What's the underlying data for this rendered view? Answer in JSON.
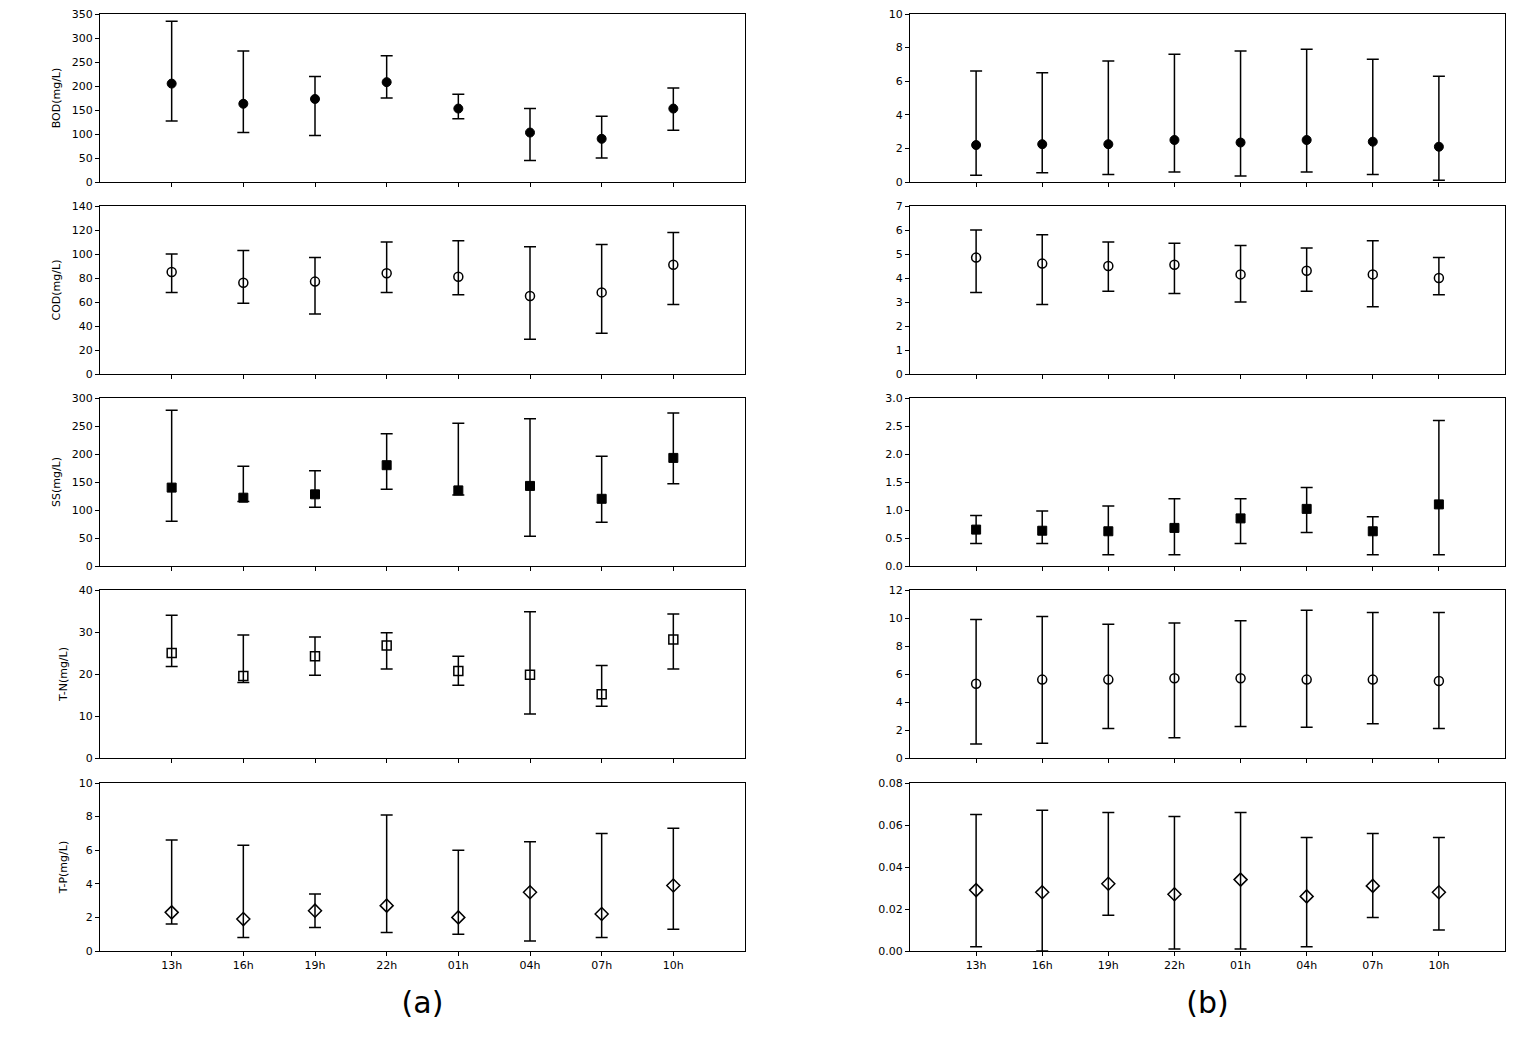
{
  "chart_data": [
    {
      "type": "scatter",
      "ylabel": "BOD(mg/L)",
      "categories": [
        "13h",
        "16h",
        "19h",
        "22h",
        "01h",
        "04h",
        "07h",
        "10h"
      ],
      "values": [
        205,
        163,
        173,
        208,
        153,
        103,
        90,
        153
      ],
      "low": [
        127,
        103,
        97,
        175,
        132,
        45,
        50,
        108
      ],
      "high": [
        335,
        273,
        220,
        263,
        183,
        153,
        137,
        196
      ],
      "ylim": [
        0,
        350
      ],
      "yticks": [
        0,
        50,
        100,
        150,
        200,
        250,
        300,
        350
      ],
      "marker": "circle",
      "color": "#000000",
      "grid": false,
      "tick_labels": "y"
    },
    {
      "type": "scatter",
      "ylabel": "COD(mg/L)",
      "categories": [
        "13h",
        "16h",
        "19h",
        "22h",
        "01h",
        "04h",
        "07h",
        "10h"
      ],
      "values": [
        85,
        76,
        77,
        84,
        81,
        65,
        68,
        91
      ],
      "low": [
        68,
        59,
        50,
        68,
        66,
        29,
        34,
        58
      ],
      "high": [
        100,
        103,
        97,
        110,
        111,
        106,
        108,
        118
      ],
      "ylim": [
        0,
        140
      ],
      "yticks": [
        0,
        20,
        40,
        60,
        80,
        100,
        120,
        140
      ],
      "marker": "circle-open",
      "color": "#000000",
      "grid": false,
      "tick_labels": "y"
    },
    {
      "type": "scatter",
      "ylabel": "SS(mg/L)",
      "categories": [
        "13h",
        "16h",
        "19h",
        "22h",
        "01h",
        "04h",
        "07h",
        "10h"
      ],
      "values": [
        140,
        122,
        128,
        180,
        135,
        143,
        120,
        193
      ],
      "low": [
        80,
        115,
        105,
        137,
        127,
        53,
        78,
        147
      ],
      "high": [
        278,
        178,
        170,
        236,
        255,
        263,
        196,
        273
      ],
      "ylim": [
        0,
        300
      ],
      "yticks": [
        0,
        50,
        100,
        150,
        200,
        250,
        300
      ],
      "marker": "square",
      "color": "#000000",
      "grid": false,
      "tick_labels": "y"
    },
    {
      "type": "scatter",
      "ylabel": "T-N(mg/L)",
      "categories": [
        "13h",
        "16h",
        "19h",
        "22h",
        "01h",
        "04h",
        "07h",
        "10h"
      ],
      "values": [
        25,
        19.5,
        24.2,
        26.8,
        20.7,
        19.8,
        15.2,
        28.2
      ],
      "low": [
        21.8,
        18,
        19.7,
        21.2,
        17.3,
        10.5,
        12.3,
        21.2
      ],
      "high": [
        34,
        29.3,
        28.8,
        29.8,
        24.2,
        34.8,
        22,
        34.3
      ],
      "ylim": [
        0,
        40
      ],
      "yticks": [
        0,
        10,
        20,
        30,
        40
      ],
      "marker": "square-open",
      "color": "#000000",
      "grid": false,
      "tick_labels": "y"
    },
    {
      "type": "scatter",
      "ylabel": "T-P(mg/L)",
      "xlabel": "(a)",
      "categories": [
        "13h",
        "16h",
        "19h",
        "22h",
        "01h",
        "04h",
        "07h",
        "10h"
      ],
      "values": [
        2.3,
        1.9,
        2.4,
        2.7,
        2.0,
        3.5,
        2.2,
        3.9
      ],
      "low": [
        1.6,
        0.8,
        1.4,
        1.1,
        1.0,
        0.6,
        0.8,
        1.3
      ],
      "high": [
        6.6,
        6.3,
        3.4,
        8.1,
        6.0,
        6.5,
        7.0,
        7.3
      ],
      "ylim": [
        0,
        10
      ],
      "yticks": [
        0,
        2,
        4,
        6,
        8,
        10
      ],
      "marker": "diamond-open",
      "color": "#000000",
      "grid": false,
      "tick_labels": true
    },
    {
      "type": "scatter",
      "categories": [
        "13h",
        "16h",
        "19h",
        "22h",
        "01h",
        "04h",
        "07h",
        "10h"
      ],
      "values": [
        2.2,
        2.25,
        2.25,
        2.5,
        2.35,
        2.5,
        2.4,
        2.1
      ],
      "low": [
        0.4,
        0.55,
        0.45,
        0.6,
        0.35,
        0.6,
        0.45,
        0.1
      ],
      "high": [
        6.6,
        6.5,
        7.2,
        7.6,
        7.8,
        7.9,
        7.3,
        6.3
      ],
      "ylim": [
        0,
        10
      ],
      "yticks": [
        0,
        2,
        4,
        6,
        8,
        10
      ],
      "marker": "circle",
      "color": "#000000",
      "grid": false,
      "tick_labels": "y"
    },
    {
      "type": "scatter",
      "categories": [
        "13h",
        "16h",
        "19h",
        "22h",
        "01h",
        "04h",
        "07h",
        "10h"
      ],
      "values": [
        4.85,
        4.6,
        4.5,
        4.55,
        4.15,
        4.3,
        4.15,
        4.0
      ],
      "low": [
        3.4,
        2.9,
        3.45,
        3.35,
        3.0,
        3.45,
        2.8,
        3.3
      ],
      "high": [
        6.0,
        5.8,
        5.5,
        5.45,
        5.35,
        5.25,
        5.55,
        4.85
      ],
      "ylim": [
        0,
        7
      ],
      "yticks": [
        0,
        1,
        2,
        3,
        4,
        5,
        6,
        7
      ],
      "marker": "circle-open",
      "color": "#000000",
      "grid": false,
      "tick_labels": "y"
    },
    {
      "type": "scatter",
      "categories": [
        "13h",
        "16h",
        "19h",
        "22h",
        "01h",
        "04h",
        "07h",
        "10h"
      ],
      "values": [
        0.65,
        0.63,
        0.62,
        0.68,
        0.85,
        1.02,
        0.62,
        1.1
      ],
      "low": [
        0.4,
        0.4,
        0.2,
        0.2,
        0.4,
        0.6,
        0.2,
        0.2
      ],
      "high": [
        0.9,
        0.98,
        1.07,
        1.2,
        1.2,
        1.4,
        0.88,
        2.6
      ],
      "ylim": [
        0,
        3
      ],
      "yticks": [
        {
          "value": 0,
          "label": "0.0"
        },
        0.5,
        {
          "value": 1,
          "label": "1.0"
        },
        1.5,
        {
          "value": 2,
          "label": "2.0"
        },
        2.5,
        {
          "value": 3,
          "label": "3.0"
        }
      ],
      "marker": "square",
      "color": "#000000",
      "grid": false,
      "tick_labels": "y"
    },
    {
      "type": "scatter",
      "categories": [
        "13h",
        "16h",
        "19h",
        "22h",
        "01h",
        "04h",
        "07h",
        "10h"
      ],
      "values": [
        5.3,
        5.6,
        5.6,
        5.7,
        5.7,
        5.6,
        5.6,
        5.5
      ],
      "low": [
        1.0,
        1.05,
        2.1,
        1.45,
        2.25,
        2.2,
        2.45,
        2.1
      ],
      "high": [
        9.9,
        10.1,
        9.55,
        9.65,
        9.8,
        10.55,
        10.4,
        10.4
      ],
      "ylim": [
        0,
        12
      ],
      "yticks": [
        0,
        2,
        4,
        6,
        8,
        10,
        12
      ],
      "marker": "circle-open",
      "color": "#000000",
      "grid": false,
      "tick_labels": "y"
    },
    {
      "type": "scatter",
      "xlabel": "(b)",
      "categories": [
        "13h",
        "16h",
        "19h",
        "22h",
        "01h",
        "04h",
        "07h",
        "10h"
      ],
      "values": [
        0.029,
        0.028,
        0.032,
        0.027,
        0.034,
        0.026,
        0.031,
        0.028
      ],
      "low": [
        0.002,
        0.0,
        0.017,
        0.001,
        0.001,
        0.002,
        0.016,
        0.01
      ],
      "high": [
        0.065,
        0.067,
        0.066,
        0.064,
        0.066,
        0.054,
        0.056,
        0.054
      ],
      "ylim": [
        0,
        0.08
      ],
      "yticks": [
        {
          "value": 0,
          "label": "0.00"
        },
        0.02,
        0.04,
        0.06,
        0.08
      ],
      "marker": "diamond-open",
      "color": "#000000",
      "grid": false,
      "tick_labels": true
    }
  ]
}
